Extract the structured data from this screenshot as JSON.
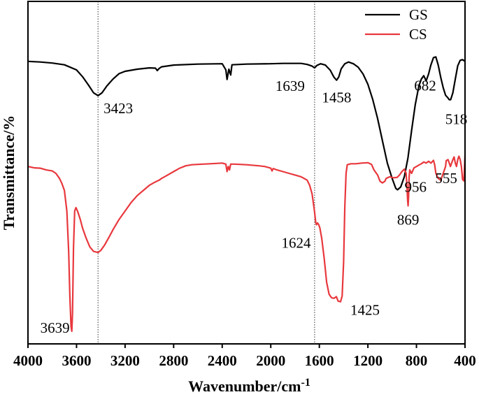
{
  "chart_data": {
    "type": "line",
    "xlabel": "Wavenumber/cm",
    "xlabel_exp": "-1",
    "ylabel": "Transmittance/%",
    "xlim": [
      4000,
      400
    ],
    "x_reversed": true,
    "xticks": [
      4000,
      3600,
      3200,
      2800,
      2400,
      2000,
      1600,
      1200,
      800,
      400
    ],
    "xtick_labels": [
      "4000",
      "3600",
      "3200",
      "2800",
      "2400",
      "2000",
      "1600",
      "1200",
      "800",
      "400"
    ],
    "yticks_shown": false,
    "ylim": [
      0,
      100
    ],
    "legend": {
      "position": "top-right",
      "entries": [
        "GS",
        "CS"
      ]
    },
    "reference_lines": [
      3423,
      1639
    ],
    "series": [
      {
        "name": "GS",
        "color": "#000000",
        "points": [
          [
            4000,
            82.5
          ],
          [
            3900,
            82.3
          ],
          [
            3800,
            82.0
          ],
          [
            3700,
            81.5
          ],
          [
            3600,
            80.0
          ],
          [
            3550,
            78.0
          ],
          [
            3500,
            75.5
          ],
          [
            3460,
            73.3
          ],
          [
            3423,
            72.5
          ],
          [
            3390,
            73.3
          ],
          [
            3350,
            75.3
          ],
          [
            3300,
            77.3
          ],
          [
            3250,
            78.9
          ],
          [
            3200,
            79.6
          ],
          [
            3100,
            80.2
          ],
          [
            3000,
            80.6
          ],
          [
            2950,
            80.5
          ],
          [
            2935,
            79.8
          ],
          [
            2920,
            80.4
          ],
          [
            2900,
            80.9
          ],
          [
            2800,
            81.4
          ],
          [
            2600,
            81.7
          ],
          [
            2400,
            81.8
          ],
          [
            2370,
            80.0
          ],
          [
            2360,
            77.2
          ],
          [
            2345,
            80.2
          ],
          [
            2330,
            78.5
          ],
          [
            2320,
            81.5
          ],
          [
            2200,
            81.7
          ],
          [
            2000,
            81.8
          ],
          [
            1900,
            81.9
          ],
          [
            1750,
            81.9
          ],
          [
            1700,
            81.6
          ],
          [
            1660,
            81.1
          ],
          [
            1639,
            80.6
          ],
          [
            1620,
            81.3
          ],
          [
            1590,
            81.8
          ],
          [
            1550,
            81.4
          ],
          [
            1510,
            79.9
          ],
          [
            1480,
            77.9
          ],
          [
            1458,
            77.0
          ],
          [
            1440,
            77.9
          ],
          [
            1420,
            80.3
          ],
          [
            1390,
            81.8
          ],
          [
            1360,
            82.3
          ],
          [
            1320,
            81.8
          ],
          [
            1280,
            80.8
          ],
          [
            1240,
            78.8
          ],
          [
            1200,
            75.8
          ],
          [
            1160,
            71.3
          ],
          [
            1120,
            65.8
          ],
          [
            1080,
            59.3
          ],
          [
            1040,
            52.8
          ],
          [
            1000,
            48.3
          ],
          [
            970,
            45.4
          ],
          [
            956,
            45.0
          ],
          [
            930,
            45.8
          ],
          [
            900,
            48.8
          ],
          [
            870,
            54.3
          ],
          [
            840,
            62.3
          ],
          [
            810,
            69.8
          ],
          [
            780,
            75.3
          ],
          [
            760,
            77.3
          ],
          [
            740,
            78.3
          ],
          [
            720,
            76.8
          ],
          [
            700,
            78.8
          ],
          [
            682,
            81.3
          ],
          [
            660,
            83.6
          ],
          [
            640,
            83.8
          ],
          [
            620,
            81.3
          ],
          [
            600,
            77.8
          ],
          [
            580,
            74.8
          ],
          [
            560,
            72.6
          ],
          [
            540,
            71.8
          ],
          [
            530,
            71.3
          ],
          [
            518,
            71.3
          ],
          [
            500,
            73.3
          ],
          [
            480,
            77.3
          ],
          [
            460,
            81.2
          ],
          [
            440,
            82.8
          ],
          [
            420,
            83.0
          ],
          [
            400,
            82.5
          ]
        ]
      },
      {
        "name": "CS",
        "color": "#e8383d",
        "points": [
          [
            4000,
            51.8
          ],
          [
            3950,
            51.4
          ],
          [
            3900,
            51.3
          ],
          [
            3850,
            50.8
          ],
          [
            3800,
            50.5
          ],
          [
            3770,
            49.8
          ],
          [
            3740,
            48.3
          ],
          [
            3720,
            46.8
          ],
          [
            3700,
            44.8
          ],
          [
            3680,
            38.8
          ],
          [
            3665,
            27.0
          ],
          [
            3655,
            14.0
          ],
          [
            3645,
            5.0
          ],
          [
            3639,
            3.7
          ],
          [
            3633,
            9.0
          ],
          [
            3625,
            28.0
          ],
          [
            3615,
            38.8
          ],
          [
            3605,
            39.8
          ],
          [
            3590,
            38.6
          ],
          [
            3570,
            36.4
          ],
          [
            3550,
            33.8
          ],
          [
            3520,
            30.8
          ],
          [
            3490,
            28.3
          ],
          [
            3460,
            27.0
          ],
          [
            3423,
            26.7
          ],
          [
            3400,
            27.3
          ],
          [
            3370,
            28.8
          ],
          [
            3330,
            31.3
          ],
          [
            3300,
            33.3
          ],
          [
            3250,
            36.3
          ],
          [
            3200,
            38.8
          ],
          [
            3150,
            41.3
          ],
          [
            3100,
            43.3
          ],
          [
            3050,
            44.8
          ],
          [
            3000,
            46.3
          ],
          [
            2950,
            47.3
          ],
          [
            2920,
            47.8
          ],
          [
            2900,
            48.3
          ],
          [
            2850,
            49.3
          ],
          [
            2800,
            50.3
          ],
          [
            2750,
            51.3
          ],
          [
            2700,
            52.0
          ],
          [
            2650,
            52.3
          ],
          [
            2600,
            52.4
          ],
          [
            2500,
            52.6
          ],
          [
            2400,
            52.8
          ],
          [
            2370,
            52.5
          ],
          [
            2360,
            50.3
          ],
          [
            2350,
            51.8
          ],
          [
            2340,
            50.8
          ],
          [
            2330,
            52.5
          ],
          [
            2300,
            52.5
          ],
          [
            2200,
            52.3
          ],
          [
            2100,
            52.0
          ],
          [
            2050,
            51.8
          ],
          [
            2000,
            51.3
          ],
          [
            1990,
            50.5
          ],
          [
            1980,
            51.2
          ],
          [
            1950,
            50.8
          ],
          [
            1900,
            50.3
          ],
          [
            1850,
            49.8
          ],
          [
            1800,
            49.3
          ],
          [
            1750,
            48.8
          ],
          [
            1700,
            47.8
          ],
          [
            1680,
            46.3
          ],
          [
            1660,
            43.8
          ],
          [
            1640,
            38.8
          ],
          [
            1630,
            35.5
          ],
          [
            1624,
            34.8
          ],
          [
            1615,
            35.3
          ],
          [
            1605,
            34.8
          ],
          [
            1595,
            33.8
          ],
          [
            1580,
            30.8
          ],
          [
            1560,
            25.0
          ],
          [
            1540,
            18.0
          ],
          [
            1520,
            14.5
          ],
          [
            1500,
            13.5
          ],
          [
            1480,
            13.3
          ],
          [
            1460,
            13.8
          ],
          [
            1445,
            12.5
          ],
          [
            1425,
            12.3
          ],
          [
            1412,
            14.0
          ],
          [
            1400,
            24.0
          ],
          [
            1390,
            40.0
          ],
          [
            1380,
            49.8
          ],
          [
            1370,
            52.3
          ],
          [
            1340,
            52.6
          ],
          [
            1300,
            52.6
          ],
          [
            1250,
            52.8
          ],
          [
            1200,
            52.9
          ],
          [
            1170,
            52.4
          ],
          [
            1150,
            50.8
          ],
          [
            1120,
            49.3
          ],
          [
            1100,
            47.5
          ],
          [
            1080,
            47.0
          ],
          [
            1060,
            47.5
          ],
          [
            1050,
            48.3
          ],
          [
            1020,
            48.8
          ],
          [
            990,
            48.5
          ],
          [
            960,
            48.6
          ],
          [
            940,
            49.3
          ],
          [
            920,
            50.3
          ],
          [
            900,
            51.0
          ],
          [
            885,
            49.8
          ],
          [
            878,
            46.0
          ],
          [
            873,
            42.0
          ],
          [
            869,
            40.3
          ],
          [
            865,
            43.0
          ],
          [
            860,
            48.8
          ],
          [
            855,
            50.8
          ],
          [
            840,
            49.8
          ],
          [
            820,
            51.4
          ],
          [
            800,
            51.8
          ],
          [
            780,
            52.2
          ],
          [
            760,
            52.6
          ],
          [
            740,
            53.1
          ],
          [
            720,
            52.8
          ],
          [
            700,
            53.3
          ],
          [
            680,
            52.8
          ],
          [
            660,
            53.6
          ],
          [
            650,
            52.3
          ],
          [
            640,
            49.8
          ],
          [
            620,
            48.3
          ],
          [
            600,
            47.8
          ],
          [
            580,
            49.8
          ],
          [
            560,
            51.8
          ],
          [
            555,
            53.5
          ],
          [
            540,
            53.8
          ],
          [
            520,
            51.8
          ],
          [
            500,
            53.8
          ],
          [
            490,
            54.6
          ],
          [
            480,
            52.8
          ],
          [
            470,
            51.8
          ],
          [
            460,
            53.8
          ],
          [
            450,
            54.8
          ],
          [
            440,
            53.8
          ],
          [
            430,
            51.8
          ],
          [
            420,
            48.0
          ],
          [
            410,
            47.6
          ],
          [
            400,
            55.0
          ]
        ]
      }
    ],
    "annotations": [
      {
        "text": "3423",
        "series": "GS",
        "x": 3423
      },
      {
        "text": "1639",
        "series": "GS",
        "x": 1639
      },
      {
        "text": "1458",
        "series": "GS",
        "x": 1458
      },
      {
        "text": "682",
        "series": "GS",
        "x": 682
      },
      {
        "text": "956",
        "series": "GS",
        "x": 956
      },
      {
        "text": "518",
        "series": "GS",
        "x": 518
      },
      {
        "text": "3639",
        "series": "CS",
        "x": 3639
      },
      {
        "text": "1624",
        "series": "CS",
        "x": 1624
      },
      {
        "text": "1425",
        "series": "CS",
        "x": 1425
      },
      {
        "text": "869",
        "series": "CS",
        "x": 869
      },
      {
        "text": "555",
        "series": "CS",
        "x": 555
      }
    ]
  }
}
